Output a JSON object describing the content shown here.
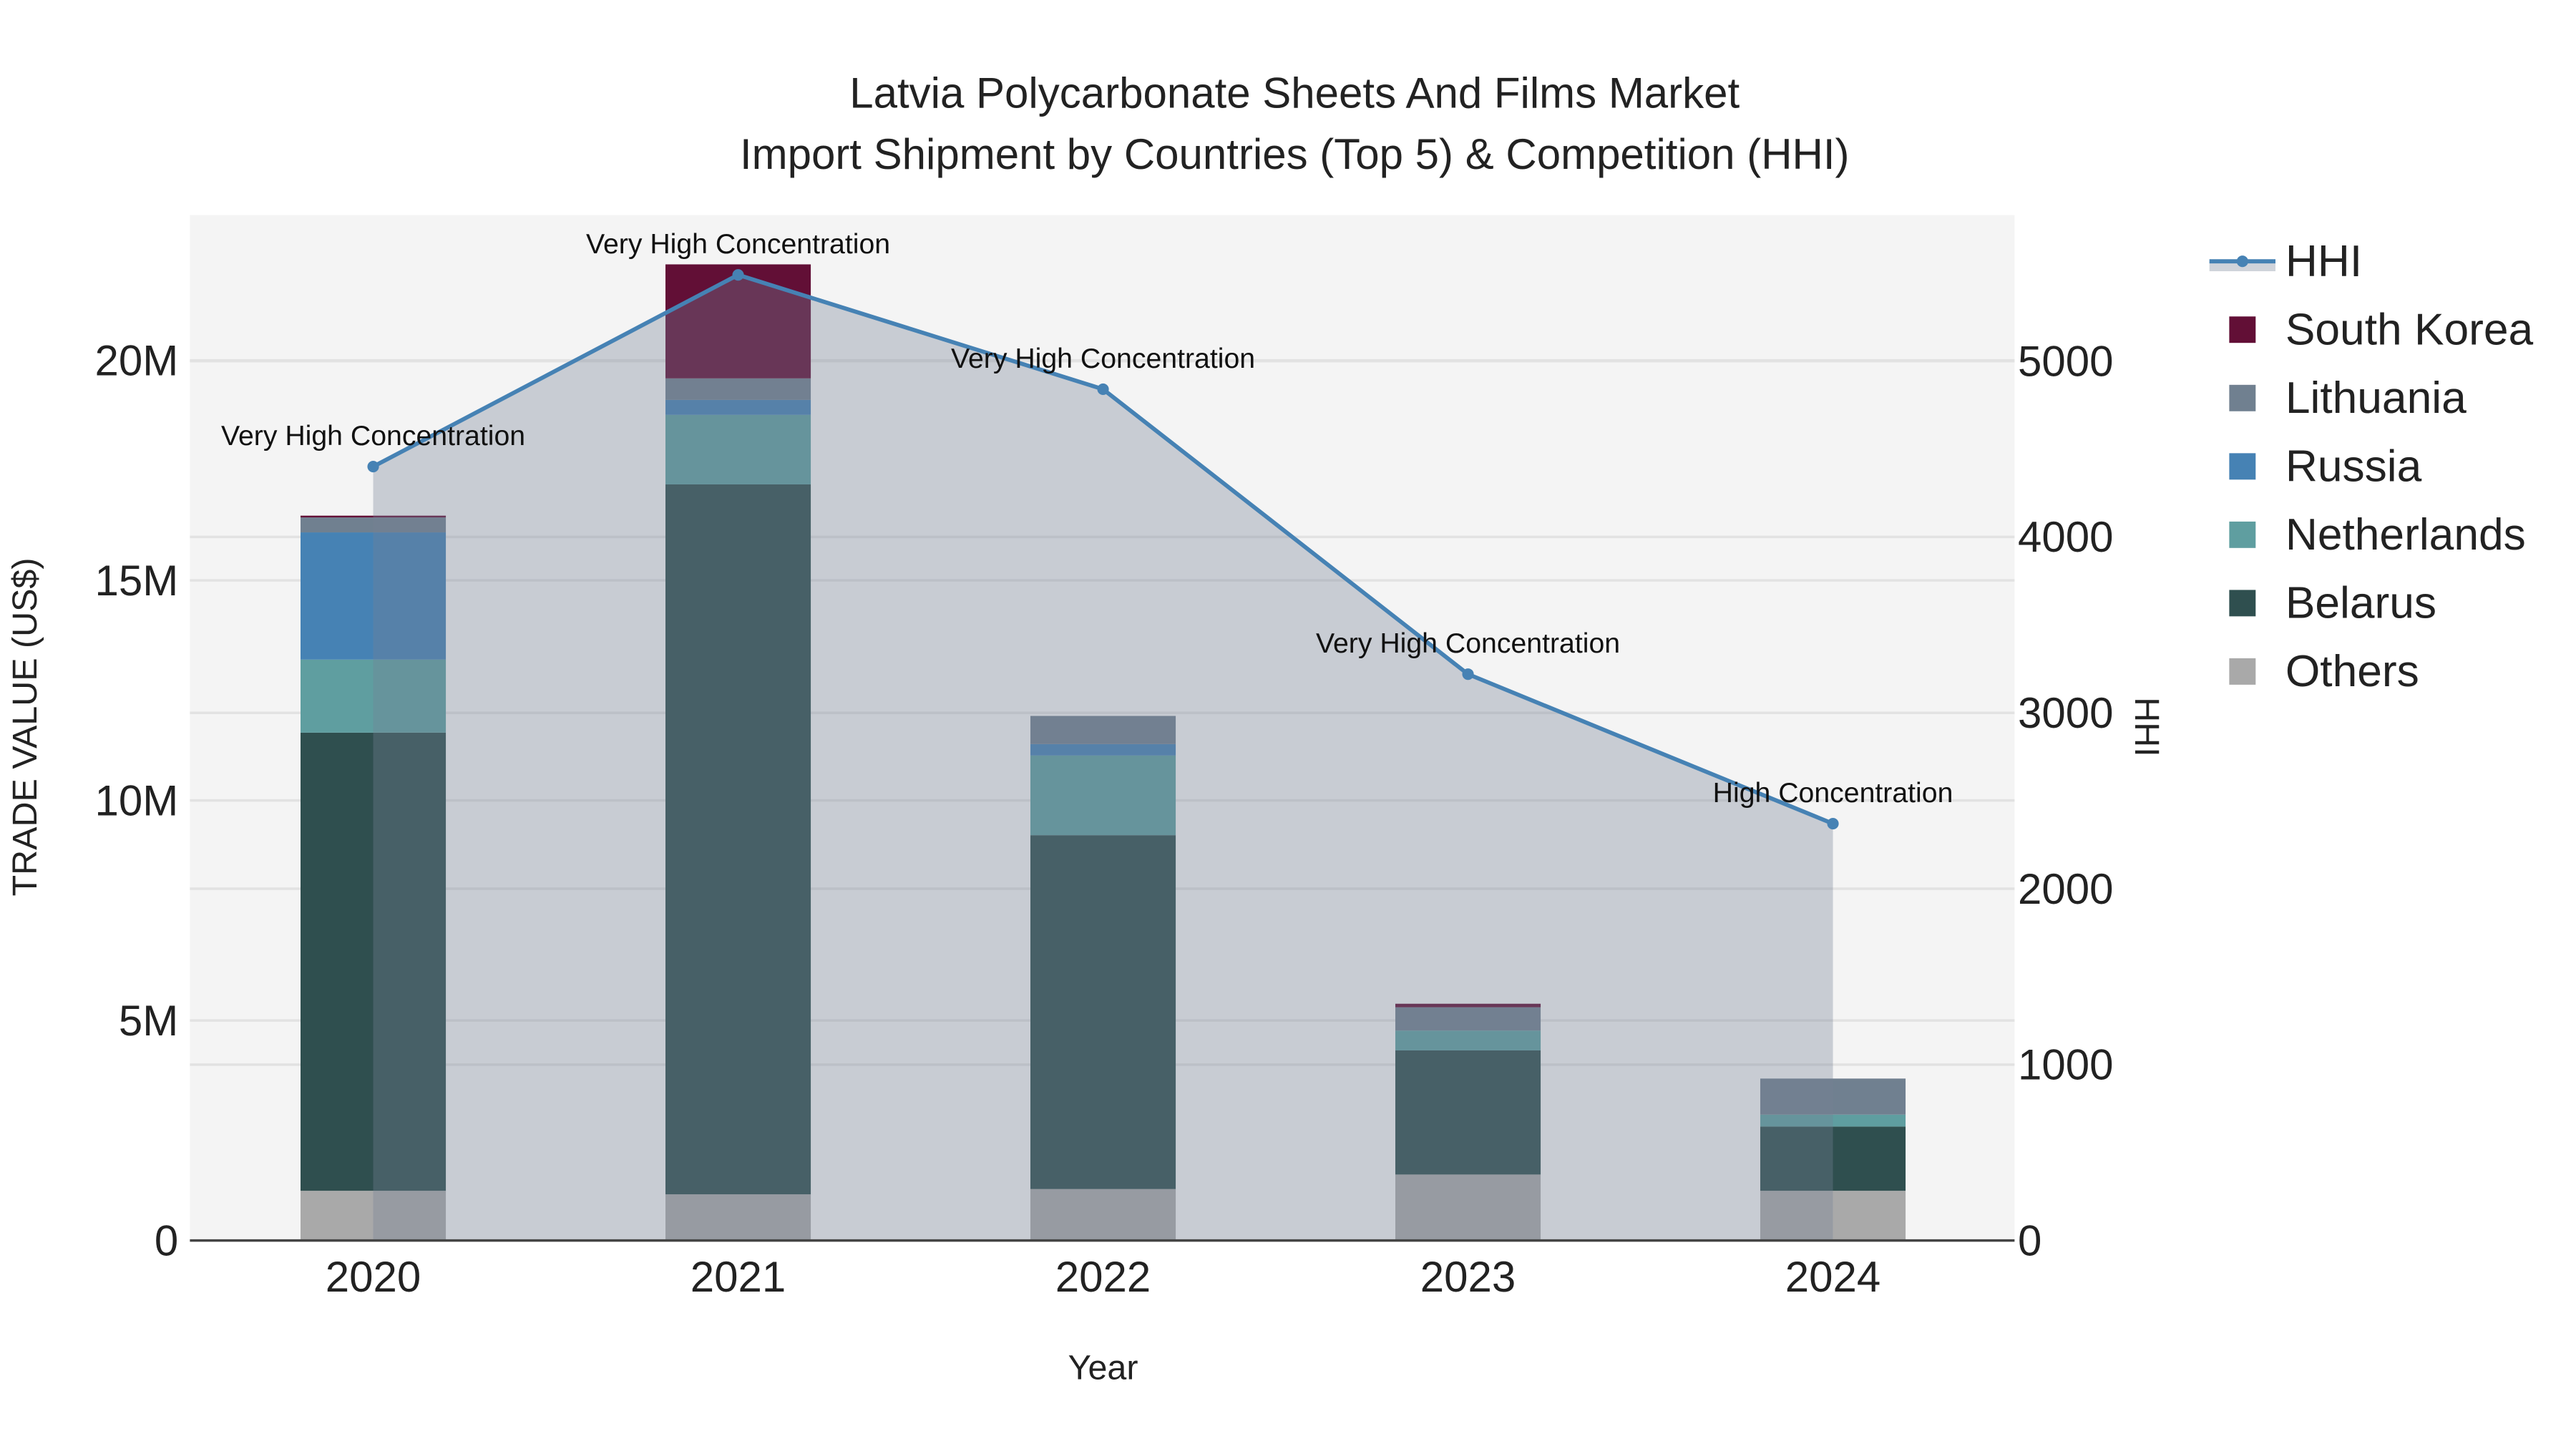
{
  "chart_data": {
    "type": "bar",
    "title": "Latvia Polycarbonate Sheets And Films Market",
    "subtitle": "Import Shipment by Countries (Top 5) & Competition (HHI)",
    "xlabel": "Year",
    "ylabel": "TRADE VALUE (US$)",
    "y2label": "HHI",
    "categories": [
      "2020",
      "2021",
      "2022",
      "2023",
      "2024"
    ],
    "ylim": [
      0,
      23300000
    ],
    "y2lim": [
      0,
      5830
    ],
    "yticks": [
      {
        "v": 0,
        "label": "0"
      },
      {
        "v": 5000000,
        "label": "5M"
      },
      {
        "v": 10000000,
        "label": "10M"
      },
      {
        "v": 15000000,
        "label": "15M"
      },
      {
        "v": 20000000,
        "label": "20M"
      }
    ],
    "y2ticks": [
      0,
      1000,
      2000,
      3000,
      4000,
      5000
    ],
    "grid": true,
    "legend_position": "right",
    "series": [
      {
        "name": "Others",
        "color": "#a9a9a9",
        "values": [
          1130000,
          1050000,
          1170000,
          1500000,
          1130000
        ]
      },
      {
        "name": "Belarus",
        "color": "#2f4f4f",
        "values": [
          10410000,
          16130000,
          8040000,
          2820000,
          1460000
        ]
      },
      {
        "name": "Netherlands",
        "color": "#5f9ea0",
        "values": [
          1660000,
          1580000,
          1810000,
          450000,
          270000
        ]
      },
      {
        "name": "Russia",
        "color": "#4682b4",
        "values": [
          2890000,
          340000,
          260000,
          0,
          0
        ]
      },
      {
        "name": "Lithuania",
        "color": "#708090",
        "values": [
          340000,
          490000,
          640000,
          530000,
          820000
        ]
      },
      {
        "name": "South Korea",
        "color": "#620f36",
        "values": [
          40000,
          2590000,
          0,
          80000,
          0
        ]
      }
    ],
    "hhi": {
      "name": "HHI",
      "color": "#4682b4",
      "values": [
        4400,
        5490,
        4840,
        3220,
        2370
      ],
      "annotations": [
        "Very High Concentration",
        "Very High Concentration",
        "Very High Concentration",
        "Very High Concentration",
        "High Concentration"
      ]
    },
    "legend_order": [
      "HHI",
      "South Korea",
      "Lithuania",
      "Russia",
      "Netherlands",
      "Belarus",
      "Others"
    ]
  }
}
